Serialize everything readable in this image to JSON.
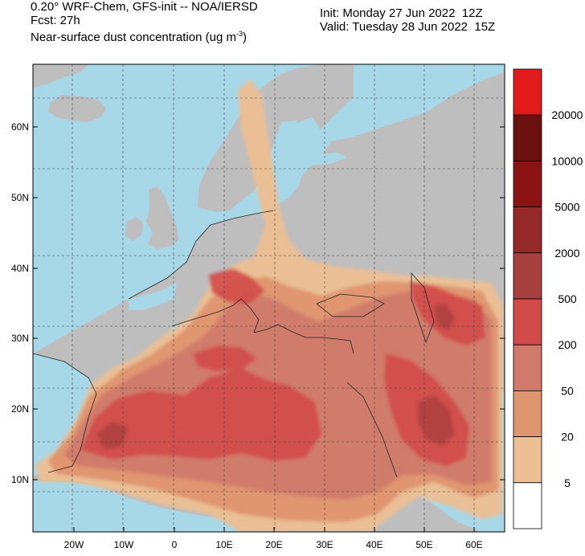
{
  "header": {
    "line1": "0.20° WRF-Chem, GFS-init -- NOA/IERSD",
    "line2": "Fcst: 27h",
    "line3_prefix": "Near-surface dust concentration (ug m",
    "line3_sup": "-3",
    "line3_suffix": ")",
    "init": "Init: Monday 27 Jun 2022  12Z",
    "valid": "Valid: Tuesday 28 Jun 2022  15Z"
  },
  "map": {
    "projection": "lat-lon",
    "extent": {
      "lon": [
        -28,
        68
      ],
      "lat": [
        4,
        69
      ]
    },
    "lat_ticks": [
      "60N",
      "50N",
      "40N",
      "30N",
      "20N",
      "10N"
    ],
    "lon_ticks": [
      "20W",
      "10W",
      "0",
      "10E",
      "20E",
      "30E",
      "40E",
      "50E",
      "60E"
    ],
    "colors": {
      "ocean": "#a8d8e8",
      "land": "#bebebe",
      "grid": "#444444"
    }
  },
  "legend": {
    "levels": [
      "20000",
      "10000",
      "5000",
      "2000",
      "500",
      "200",
      "50",
      "20",
      "5"
    ],
    "colors": [
      "#e31a1c",
      "#6b0f0f",
      "#8b1313",
      "#962a2a",
      "#a84040",
      "#d24b4b",
      "#cf7a6c",
      "#de9570",
      "#ecbf94",
      "#ffffff"
    ]
  }
}
